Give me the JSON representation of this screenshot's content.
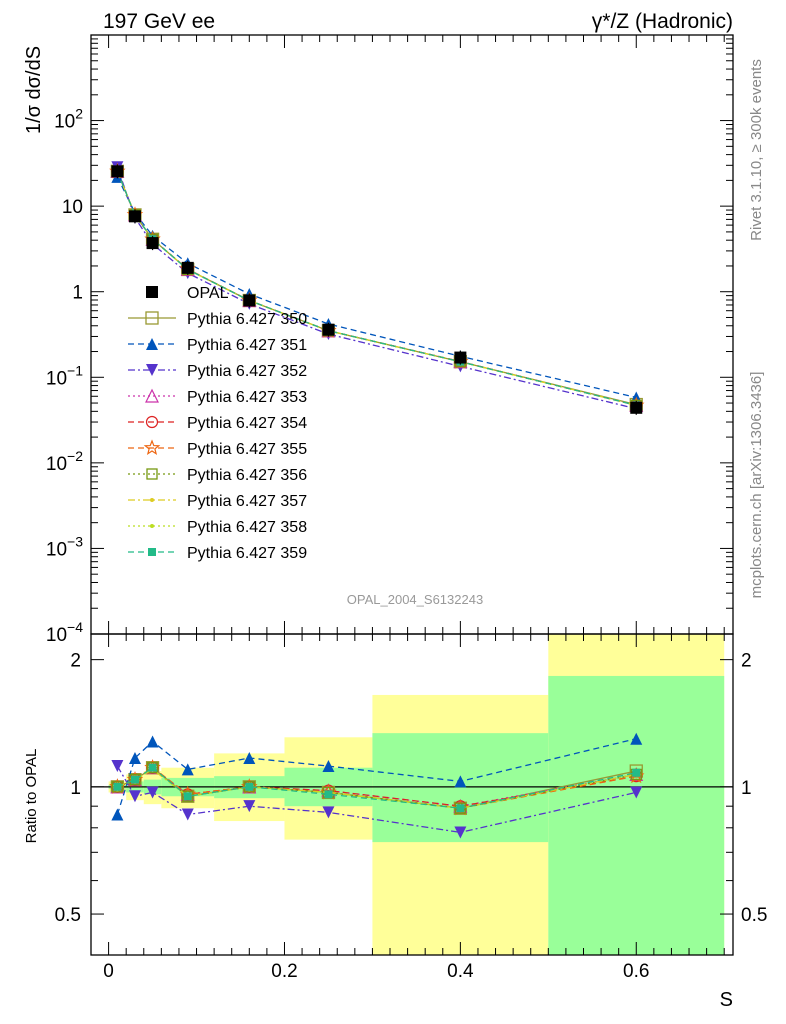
{
  "header": {
    "left_title": "197 GeV ee",
    "right_title": "γ*/Z (Hadronic)"
  },
  "side_labels": {
    "rivet": "Rivet 3.1.10, ≥ 300k events",
    "mcplots": "mcplots.cern.ch [arXiv:1306.3436]"
  },
  "analysis_tag": "OPAL_2004_S6132243",
  "colors": {
    "data": "#000000",
    "stat_band": "#99ff99",
    "total_band": "#ffff99",
    "p350": "#999933",
    "p351": "#0055bb",
    "p352": "#5533cc",
    "p353": "#cc33aa",
    "p354": "#dd2222",
    "p355": "#ee6611",
    "p356": "#779911",
    "p357": "#ddcc22",
    "p358": "#bbdd22",
    "p359": "#22bb88"
  },
  "chart_data": [
    {
      "type": "line",
      "panel": "main",
      "title": "197 GeV ee",
      "xlabel": "S",
      "ylabel": "1/σ dσ/dS",
      "yscale": "log",
      "ylim": [
        0.0001,
        1000
      ],
      "xlim": [
        -0.02,
        0.71
      ],
      "y_tick_labels": [
        "10^{-4}",
        "10^{-3}",
        "10^{-2}",
        "10^{-1}",
        "1",
        "10",
        "10^{2}"
      ],
      "x": [
        0.01,
        0.03,
        0.05,
        0.09,
        0.16,
        0.25,
        0.4,
        0.6
      ],
      "data": {
        "name": "OPAL",
        "values": [
          25.5,
          7.6,
          3.7,
          1.9,
          0.79,
          0.36,
          0.17,
          0.044
        ]
      },
      "series": [
        {
          "key": "p350",
          "name": "Pythia 6.427 350",
          "marker": "open-square",
          "dash": "solid",
          "values": [
            25.5,
            7.9,
            4.1,
            1.82,
            0.79,
            0.35,
            0.152,
            0.048
          ]
        },
        {
          "key": "p351",
          "name": "Pythia 6.427 351",
          "marker": "filled-triangle-up",
          "dash": "dashed",
          "values": [
            22.0,
            8.3,
            4.5,
            2.15,
            0.94,
            0.42,
            0.176,
            0.058
          ]
        },
        {
          "key": "p352",
          "name": "Pythia 6.427 352",
          "marker": "filled-triangle-down",
          "dash": "dashdot",
          "values": [
            28.5,
            7.3,
            3.6,
            1.65,
            0.72,
            0.32,
            0.134,
            0.043
          ]
        },
        {
          "key": "p353",
          "name": "Pythia 6.427 353",
          "marker": "open-triangle-up",
          "dash": "dotted",
          "values": [
            25.6,
            7.9,
            4.1,
            1.83,
            0.79,
            0.35,
            0.153,
            0.047
          ]
        },
        {
          "key": "p354",
          "name": "Pythia 6.427 354",
          "marker": "open-circle",
          "dash": "dashed",
          "values": [
            25.5,
            7.9,
            4.1,
            1.83,
            0.79,
            0.35,
            0.153,
            0.047
          ]
        },
        {
          "key": "p355",
          "name": "Pythia 6.427 355",
          "marker": "open-star",
          "dash": "dashed",
          "values": [
            25.5,
            7.9,
            4.1,
            1.84,
            0.79,
            0.35,
            0.152,
            0.047
          ]
        },
        {
          "key": "p356",
          "name": "Pythia 6.427 356",
          "marker": "open-square-small",
          "dash": "dotted",
          "values": [
            25.5,
            7.9,
            4.1,
            1.82,
            0.79,
            0.35,
            0.152,
            0.047
          ]
        },
        {
          "key": "p357",
          "name": "Pythia 6.427 357",
          "marker": "dot",
          "dash": "dashdot",
          "values": [
            25.4,
            7.9,
            4.1,
            1.82,
            0.79,
            0.35,
            0.152,
            0.047
          ]
        },
        {
          "key": "p358",
          "name": "Pythia 6.427 358",
          "marker": "dot",
          "dash": "dotted",
          "values": [
            25.4,
            7.9,
            4.1,
            1.82,
            0.79,
            0.35,
            0.152,
            0.047
          ]
        },
        {
          "key": "p359",
          "name": "Pythia 6.427 359",
          "marker": "filled-square-small",
          "dash": "dashed",
          "values": [
            25.5,
            7.9,
            4.1,
            1.82,
            0.79,
            0.35,
            0.152,
            0.047
          ]
        }
      ]
    },
    {
      "type": "line",
      "panel": "ratio",
      "xlabel": "S",
      "ylabel": "Ratio to OPAL",
      "ylim": [
        0.4,
        2.3
      ],
      "xlim": [
        -0.02,
        0.71
      ],
      "x_tick_labels": [
        "0",
        "0.2",
        "0.4",
        "0.6"
      ],
      "y_tick_labels": [
        "0.5",
        "1",
        "2"
      ],
      "reference_line": 1.0,
      "bins": [
        {
          "xlow": 0.0,
          "xhigh": 0.02,
          "stat": [
            0.99,
            1.01
          ],
          "total": [
            0.97,
            1.03
          ]
        },
        {
          "xlow": 0.02,
          "xhigh": 0.04,
          "stat": [
            0.97,
            1.03
          ],
          "total": [
            0.93,
            1.07
          ]
        },
        {
          "xlow": 0.04,
          "xhigh": 0.06,
          "stat": [
            0.96,
            1.04
          ],
          "total": [
            0.91,
            1.09
          ]
        },
        {
          "xlow": 0.06,
          "xhigh": 0.12,
          "stat": [
            0.95,
            1.05
          ],
          "total": [
            0.89,
            1.11
          ]
        },
        {
          "xlow": 0.12,
          "xhigh": 0.2,
          "stat": [
            0.94,
            1.06
          ],
          "total": [
            0.83,
            1.2
          ]
        },
        {
          "xlow": 0.2,
          "xhigh": 0.3,
          "stat": [
            0.9,
            1.11
          ],
          "total": [
            0.75,
            1.31
          ]
        },
        {
          "xlow": 0.3,
          "xhigh": 0.5,
          "stat": [
            0.74,
            1.34
          ],
          "total": [
            0.34,
            1.65
          ]
        },
        {
          "xlow": 0.5,
          "xhigh": 0.7,
          "stat": [
            0.34,
            1.83
          ],
          "total": [
            0.34,
            2.3
          ]
        }
      ],
      "x": [
        0.01,
        0.03,
        0.05,
        0.09,
        0.16,
        0.25,
        0.4,
        0.6
      ],
      "series": [
        {
          "key": "p350",
          "values": [
            1.0,
            1.04,
            1.11,
            0.95,
            1.0,
            0.97,
            0.89,
            1.09
          ]
        },
        {
          "key": "p351",
          "values": [
            0.86,
            1.17,
            1.28,
            1.1,
            1.17,
            1.12,
            1.03,
            1.3
          ]
        },
        {
          "key": "p352",
          "values": [
            1.12,
            0.95,
            0.97,
            0.86,
            0.9,
            0.87,
            0.78,
            0.97
          ]
        },
        {
          "key": "p353",
          "values": [
            1.0,
            1.04,
            1.11,
            0.96,
            1.0,
            0.98,
            0.9,
            1.07
          ]
        },
        {
          "key": "p354",
          "values": [
            1.0,
            1.04,
            1.11,
            0.96,
            1.0,
            0.98,
            0.9,
            1.06
          ]
        },
        {
          "key": "p355",
          "values": [
            1.0,
            1.04,
            1.11,
            0.96,
            1.0,
            0.97,
            0.89,
            1.06
          ]
        },
        {
          "key": "p356",
          "values": [
            1.0,
            1.04,
            1.11,
            0.95,
            1.0,
            0.97,
            0.89,
            1.07
          ]
        },
        {
          "key": "p357",
          "values": [
            1.0,
            1.04,
            1.1,
            0.95,
            1.0,
            0.97,
            0.89,
            1.07
          ]
        },
        {
          "key": "p358",
          "values": [
            1.0,
            1.04,
            1.1,
            0.95,
            1.0,
            0.97,
            0.89,
            1.07
          ]
        },
        {
          "key": "p359",
          "values": [
            1.0,
            1.04,
            1.11,
            0.95,
            1.0,
            0.96,
            0.89,
            1.08
          ]
        }
      ]
    }
  ]
}
